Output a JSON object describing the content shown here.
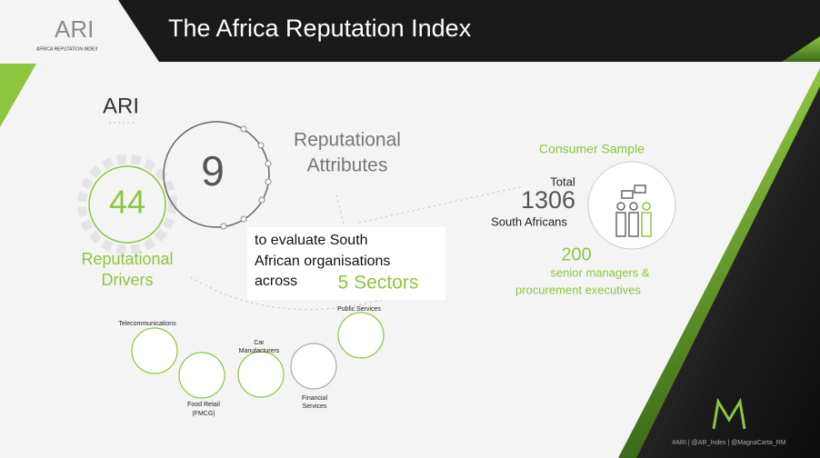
{
  "logo": {
    "name": "ARI",
    "tagline": "AFRICA REPUTATION INDEX"
  },
  "title": "The Africa Reputation Index",
  "ari_label": "ARI",
  "attributes": {
    "number": 9,
    "label": [
      "Reputational",
      "Attributes"
    ]
  },
  "drivers": {
    "number": 44,
    "label": [
      "Reputational",
      "Drivers"
    ]
  },
  "evaluate": [
    "to evaluate South",
    "African organisations",
    "across"
  ],
  "sectors_label": "5 Sectors",
  "sectors": [
    {
      "label": [
        "Telecommunications"
      ]
    },
    {
      "label": [
        "Food Retail",
        "(FMCG)"
      ]
    },
    {
      "label": [
        "Car",
        "Manufacturers"
      ]
    },
    {
      "label": [
        "Financial",
        "Services"
      ]
    },
    {
      "label": [
        "Public Services"
      ]
    }
  ],
  "consumer": {
    "heading": "Consumer Sample",
    "total": "Total",
    "number": 1306,
    "who": "South Africans"
  },
  "managers": {
    "number": 200,
    "label": [
      "senior managers &",
      "procurement executives"
    ]
  },
  "footer": "#ARI  |  @AR_Index  |  @MagnaCarta_RM"
}
